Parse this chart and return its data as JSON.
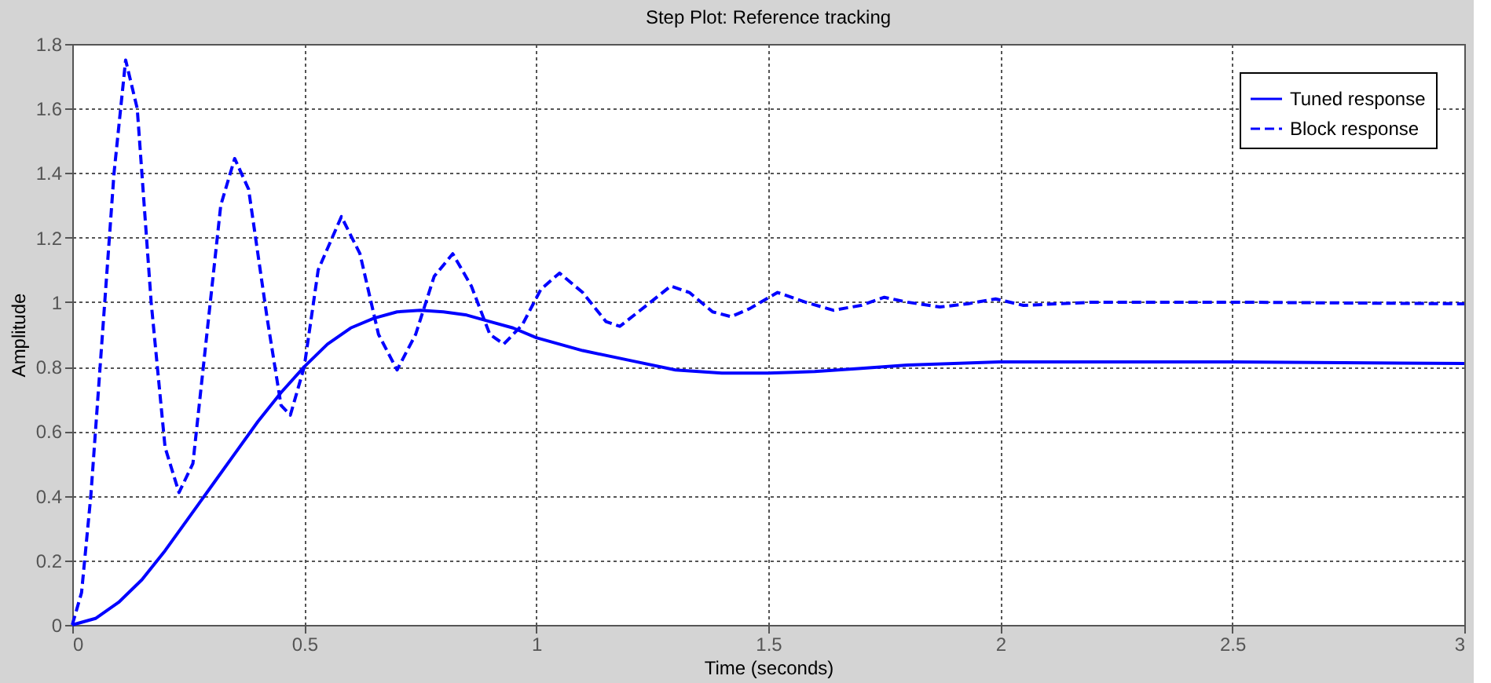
{
  "chart_data": {
    "type": "line",
    "title": "Step Plot: Reference tracking",
    "xlabel": "Time (seconds)",
    "ylabel": "Amplitude",
    "xlim": [
      0,
      3
    ],
    "xticks": [
      0,
      0.5,
      1,
      1.5,
      2,
      2.5,
      3
    ],
    "ylim": [
      0,
      1.8
    ],
    "yticks": [
      0,
      0.2,
      0.4,
      0.6,
      0.8,
      1,
      1.2,
      1.4,
      1.6,
      1.8
    ],
    "grid": true,
    "legend": "top right",
    "marker": "none",
    "series": [
      {
        "name": "Tuned response",
        "color": "#0000ff",
        "line_style": "solid",
        "x": [
          0,
          0.05,
          0.1,
          0.15,
          0.2,
          0.25,
          0.3,
          0.35,
          0.4,
          0.45,
          0.5,
          0.55,
          0.6,
          0.65,
          0.7,
          0.75,
          0.8,
          0.85,
          0.9,
          0.95,
          1.0,
          1.1,
          1.2,
          1.3,
          1.4,
          1.5,
          1.6,
          1.7,
          1.8,
          1.9,
          2.0,
          2.5,
          3.0
        ],
        "values": [
          0,
          0.02,
          0.07,
          0.14,
          0.23,
          0.33,
          0.43,
          0.53,
          0.63,
          0.72,
          0.8,
          0.87,
          0.92,
          0.95,
          0.97,
          0.975,
          0.97,
          0.96,
          0.94,
          0.92,
          0.89,
          0.85,
          0.82,
          0.79,
          0.78,
          0.78,
          0.785,
          0.795,
          0.805,
          0.81,
          0.815,
          0.815,
          0.81
        ]
      },
      {
        "name": "Block response",
        "color": "#0000ff",
        "line_style": "dashed",
        "x": [
          0,
          0.02,
          0.04,
          0.07,
          0.09,
          0.115,
          0.14,
          0.17,
          0.2,
          0.23,
          0.26,
          0.29,
          0.32,
          0.35,
          0.38,
          0.42,
          0.45,
          0.47,
          0.5,
          0.53,
          0.58,
          0.62,
          0.66,
          0.7,
          0.74,
          0.78,
          0.82,
          0.86,
          0.9,
          0.93,
          0.97,
          1.01,
          1.05,
          1.1,
          1.15,
          1.18,
          1.22,
          1.29,
          1.33,
          1.38,
          1.42,
          1.46,
          1.52,
          1.58,
          1.64,
          1.7,
          1.75,
          1.8,
          1.87,
          1.93,
          1.99,
          2.05,
          2.2,
          2.5,
          3.0
        ],
        "values": [
          0,
          0.1,
          0.4,
          1.0,
          1.4,
          1.75,
          1.6,
          1.0,
          0.55,
          0.41,
          0.5,
          0.9,
          1.3,
          1.445,
          1.35,
          0.95,
          0.68,
          0.65,
          0.8,
          1.1,
          1.265,
          1.15,
          0.9,
          0.79,
          0.9,
          1.08,
          1.15,
          1.05,
          0.9,
          0.87,
          0.93,
          1.04,
          1.09,
          1.03,
          0.94,
          0.925,
          0.97,
          1.05,
          1.03,
          0.97,
          0.955,
          0.98,
          1.03,
          1.0,
          0.975,
          0.99,
          1.015,
          1.0,
          0.985,
          0.995,
          1.01,
          0.99,
          1.0,
          1.0,
          0.995
        ]
      }
    ]
  }
}
